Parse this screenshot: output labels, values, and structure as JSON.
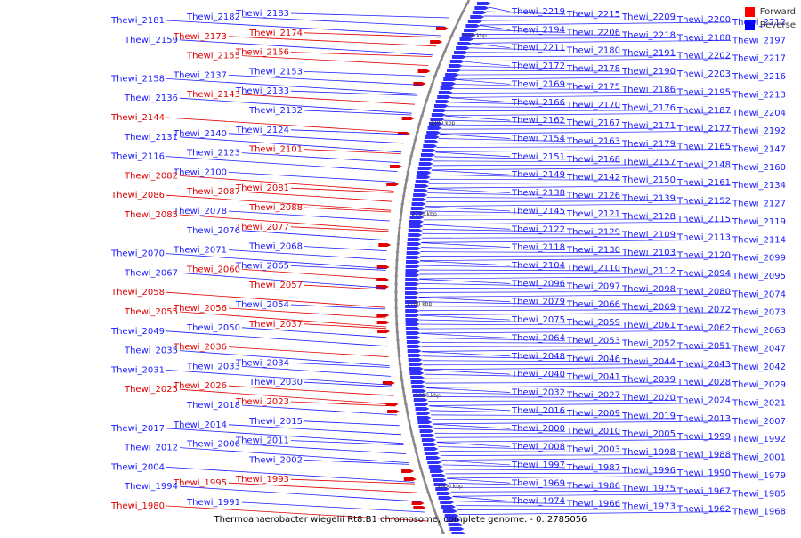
{
  "title": "Thermoanaerobacter wiegelii Rt8.B1 chromosome, complete genome. - 0..2785056",
  "legend": [
    {
      "label": "Forward",
      "color": "#ff0000"
    },
    {
      "label": "Reverse",
      "color": "#0000ff"
    }
  ],
  "colors": {
    "forward": "#e00000",
    "reverse": "#1a1aff",
    "backbone": "#888888"
  },
  "scale_labels": [
    "2250 kbp",
    "2200 kbp",
    "2150 kbp",
    "2100 kbp",
    "2050 kbp",
    "2000 kbp"
  ],
  "left_labels": [
    [
      "Thewi_2183",
      "r"
    ],
    [
      "Thewi_2182",
      "r"
    ],
    [
      "Thewi_2181",
      "r"
    ],
    [
      "Thewi_2174",
      "f"
    ],
    [
      "Thewi_2173",
      "f"
    ],
    [
      "Thewi_2159",
      "r"
    ],
    [
      "Thewi_2156",
      "f"
    ],
    [
      "Thewi_2155",
      "f"
    ],
    [
      "Thewi_2158",
      "r"
    ],
    [
      "Thewi_2153",
      "r"
    ],
    [
      "Thewi_2137",
      "r"
    ],
    [
      "Thewi_2136",
      "r"
    ],
    [
      "Thewi_2133",
      "r"
    ],
    [
      "Thewi_2143",
      "f"
    ],
    [
      "Thewi_2144",
      "f"
    ],
    [
      "Thewi_2132",
      "r"
    ],
    [
      "Thewi_2140",
      "r"
    ],
    [
      "Thewi_2131",
      "r"
    ],
    [
      "Thewi_2124",
      "r"
    ],
    [
      "Thewi_2123",
      "r"
    ],
    [
      "Thewi_2116",
      "r"
    ],
    [
      "Thewi_2101",
      "f"
    ],
    [
      "Thewi_2100",
      "r"
    ],
    [
      "Thewi_2082",
      "f"
    ],
    [
      "Thewi_2081",
      "f"
    ],
    [
      "Thewi_2087",
      "f"
    ],
    [
      "Thewi_2086",
      "f"
    ],
    [
      "Thewi_2088",
      "f"
    ],
    [
      "Thewi_2078",
      "r"
    ],
    [
      "Thewi_2085",
      "f"
    ],
    [
      "Thewi_2077",
      "f"
    ],
    [
      "Thewi_2076",
      "r"
    ],
    [
      "Thewi_2070",
      "r"
    ],
    [
      "Thewi_2068",
      "r"
    ],
    [
      "Thewi_2071",
      "r"
    ],
    [
      "Thewi_2067",
      "r"
    ],
    [
      "Thewi_2065",
      "r"
    ],
    [
      "Thewi_2060",
      "f"
    ],
    [
      "Thewi_2058",
      "f"
    ],
    [
      "Thewi_2057",
      "f"
    ],
    [
      "Thewi_2056",
      "f"
    ],
    [
      "Thewi_2055",
      "f"
    ],
    [
      "Thewi_2054",
      "r"
    ],
    [
      "Thewi_2050",
      "r"
    ],
    [
      "Thewi_2049",
      "r"
    ],
    [
      "Thewi_2037",
      "f"
    ],
    [
      "Thewi_2036",
      "f"
    ],
    [
      "Thewi_2035",
      "r"
    ],
    [
      "Thewi_2034",
      "r"
    ],
    [
      "Thewi_2033",
      "r"
    ],
    [
      "Thewi_2031",
      "r"
    ],
    [
      "Thewi_2030",
      "r"
    ],
    [
      "Thewi_2026",
      "f"
    ],
    [
      "Thewi_2025",
      "f"
    ],
    [
      "Thewi_2023",
      "f"
    ],
    [
      "Thewi_2018",
      "r"
    ],
    [
      "Thewi_2017",
      "r"
    ],
    [
      "Thewi_2015",
      "r"
    ],
    [
      "Thewi_2014",
      "r"
    ],
    [
      "Thewi_2012",
      "r"
    ],
    [
      "Thewi_2011",
      "r"
    ],
    [
      "Thewi_2006",
      "r"
    ],
    [
      "Thewi_2004",
      "r"
    ],
    [
      "Thewi_2002",
      "r"
    ],
    [
      "Thewi_1995",
      "f"
    ],
    [
      "Thewi_1994",
      "r"
    ],
    [
      "Thewi_1993",
      "f"
    ],
    [
      "Thewi_1991",
      "r"
    ],
    [
      "Thewi_1980",
      "f"
    ]
  ],
  "right_labels": [
    "Thewi_2219",
    "Thewi_2215",
    "Thewi_2209",
    "Thewi_2200",
    "Thewi_2212",
    "Thewi_2194",
    "Thewi_2206",
    "Thewi_2218",
    "Thewi_2188",
    "Thewi_2197",
    "Thewi_2211",
    "Thewi_2180",
    "Thewi_2191",
    "Thewi_2202",
    "Thewi_2217",
    "Thewi_2172",
    "Thewi_2178",
    "Thewi_2190",
    "Thewi_2203",
    "Thewi_2216",
    "Thewi_2169",
    "Thewi_2175",
    "Thewi_2186",
    "Thewi_2195",
    "Thewi_2213",
    "Thewi_2166",
    "Thewi_2170",
    "Thewi_2176",
    "Thewi_2187",
    "Thewi_2204",
    "Thewi_2162",
    "Thewi_2167",
    "Thewi_2171",
    "Thewi_2177",
    "Thewi_2192",
    "Thewi_2154",
    "Thewi_2163",
    "Thewi_2179",
    "Thewi_2165",
    "Thewi_2147",
    "Thewi_2151",
    "Thewi_2168",
    "Thewi_2157",
    "Thewi_2148",
    "Thewi_2160",
    "Thewi_2149",
    "Thewi_2142",
    "Thewi_2150",
    "Thewi_2161",
    "Thewi_2134",
    "Thewi_2138",
    "Thewi_2126",
    "Thewi_2139",
    "Thewi_2152",
    "Thewi_2127",
    "Thewi_2145",
    "Thewi_2121",
    "Thewi_2128",
    "Thewi_2115",
    "Thewi_2119",
    "Thewi_2122",
    "Thewi_2129",
    "Thewi_2109",
    "Thewi_2113",
    "Thewi_2114",
    "Thewi_2118",
    "Thewi_2130",
    "Thewi_2103",
    "Thewi_2120",
    "Thewi_2099",
    "Thewi_2104",
    "Thewi_2110",
    "Thewi_2112",
    "Thewi_2094",
    "Thewi_2095",
    "Thewi_2096",
    "Thewi_2097",
    "Thewi_2098",
    "Thewi_2080",
    "Thewi_2074",
    "Thewi_2079",
    "Thewi_2066",
    "Thewi_2069",
    "Thewi_2072",
    "Thewi_2073",
    "Thewi_2075",
    "Thewi_2059",
    "Thewi_2061",
    "Thewi_2062",
    "Thewi_2063",
    "Thewi_2064",
    "Thewi_2053",
    "Thewi_2052",
    "Thewi_2051",
    "Thewi_2047",
    "Thewi_2048",
    "Thewi_2046",
    "Thewi_2044",
    "Thewi_2043",
    "Thewi_2042",
    "Thewi_2040",
    "Thewi_2041",
    "Thewi_2039",
    "Thewi_2028",
    "Thewi_2029",
    "Thewi_2032",
    "Thewi_2027",
    "Thewi_2020",
    "Thewi_2024",
    "Thewi_2021",
    "Thewi_2016",
    "Thewi_2009",
    "Thewi_2019",
    "Thewi_2013",
    "Thewi_2007",
    "Thewi_2000",
    "Thewi_2010",
    "Thewi_2005",
    "Thewi_1999",
    "Thewi_1992",
    "Thewi_2008",
    "Thewi_2003",
    "Thewi_1998",
    "Thewi_1988",
    "Thewi_2001",
    "Thewi_1997",
    "Thewi_1987",
    "Thewi_1996",
    "Thewi_1990",
    "Thewi_1979",
    "Thewi_1969",
    "Thewi_1986",
    "Thewi_1975",
    "Thewi_1967",
    "Thewi_1985",
    "Thewi_1974",
    "Thewi_1966",
    "Thewi_1973",
    "Thewi_1962",
    "Thewi_1968"
  ]
}
